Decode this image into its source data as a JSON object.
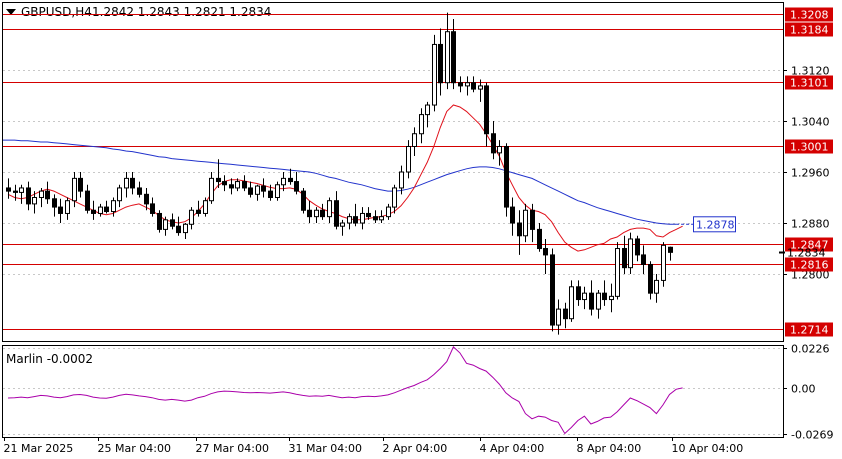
{
  "header": {
    "title": "GBPUSD,H4",
    "ohlc": "1.2842 1.2843 1.2821 1.2834"
  },
  "indicator": {
    "label": "Marlin -0.0002"
  },
  "colors": {
    "level_line": "#d40000",
    "level_label_bg": "#d40000",
    "ma_fast": "#e0101a",
    "ma_slow": "#2233cc",
    "oscillator": "#aa00aa",
    "candle_up": "#ffffff",
    "candle_down": "#000000",
    "grid": "#c8c8c8",
    "frame": "#000000"
  },
  "chart_data": [
    {
      "type": "candlestick",
      "symbol": "GBPUSD",
      "timeframe": "H4",
      "y_ticks": [
        "1.2800",
        "1.2880",
        "1.2960",
        "1.3040",
        "1.3120"
      ],
      "ylim": [
        1.2695,
        1.3225
      ],
      "x_ticks": [
        "21 Mar 2025",
        "25 Mar 04:00",
        "27 Mar 04:00",
        "31 Mar 04:00",
        "2 Apr 04:00",
        "4 Apr 04:00",
        "8 Apr 04:00",
        "10 Apr 04:00"
      ],
      "current_price": "1.2834",
      "ma_label": "1.2878",
      "levels": [
        {
          "label": "1.3208",
          "value": 1.3208
        },
        {
          "label": "1.3184",
          "value": 1.3184
        },
        {
          "label": "1.3101",
          "value": 1.3101
        },
        {
          "label": "1.3001",
          "value": 1.3001
        },
        {
          "label": "1.2847",
          "value": 1.2847
        },
        {
          "label": "1.2816",
          "value": 1.2816
        },
        {
          "label": "1.2714",
          "value": 1.2714
        }
      ],
      "candles": [
        [
          1.2935,
          1.295,
          1.2918,
          1.293
        ],
        [
          1.293,
          1.294,
          1.2915,
          1.2928
        ],
        [
          1.2928,
          1.294,
          1.291,
          1.2935
        ],
        [
          1.2935,
          1.2945,
          1.29,
          1.291
        ],
        [
          1.291,
          1.293,
          1.2895,
          1.292
        ],
        [
          1.292,
          1.2935,
          1.2905,
          1.293
        ],
        [
          1.293,
          1.2945,
          1.291,
          1.2918
        ],
        [
          1.2918,
          1.2925,
          1.289,
          1.2905
        ],
        [
          1.2905,
          1.2918,
          1.288,
          1.2895
        ],
        [
          1.2895,
          1.292,
          1.2885,
          1.2915
        ],
        [
          1.2915,
          1.296,
          1.2905,
          1.295
        ],
        [
          1.295,
          1.296,
          1.292,
          1.293
        ],
        [
          1.293,
          1.294,
          1.2895,
          1.29
        ],
        [
          1.29,
          1.2915,
          1.2885,
          1.2895
        ],
        [
          1.2895,
          1.291,
          1.289,
          1.2905
        ],
        [
          1.2905,
          1.2915,
          1.2895,
          1.2898
        ],
        [
          1.2898,
          1.292,
          1.289,
          1.2915
        ],
        [
          1.2915,
          1.294,
          1.2905,
          1.2935
        ],
        [
          1.2935,
          1.296,
          1.292,
          1.295
        ],
        [
          1.295,
          1.296,
          1.2925,
          1.2935
        ],
        [
          1.2935,
          1.2945,
          1.292,
          1.2925
        ],
        [
          1.2925,
          1.2935,
          1.29,
          1.291
        ],
        [
          1.291,
          1.292,
          1.289,
          1.2895
        ],
        [
          1.2895,
          1.29,
          1.2865,
          1.287
        ],
        [
          1.287,
          1.289,
          1.286,
          1.2885
        ],
        [
          1.2885,
          1.2895,
          1.287,
          1.2875
        ],
        [
          1.2875,
          1.289,
          1.286,
          1.2865
        ],
        [
          1.2865,
          1.288,
          1.2855,
          1.2878
        ],
        [
          1.2878,
          1.2905,
          1.287,
          1.29
        ],
        [
          1.29,
          1.2915,
          1.289,
          1.2895
        ],
        [
          1.2895,
          1.292,
          1.289,
          1.2915
        ],
        [
          1.2915,
          1.296,
          1.291,
          1.295
        ],
        [
          1.295,
          1.298,
          1.2935,
          1.2945
        ],
        [
          1.2945,
          1.2955,
          1.293,
          1.294
        ],
        [
          1.294,
          1.295,
          1.2925,
          1.2935
        ],
        [
          1.2935,
          1.295,
          1.293,
          1.2945
        ],
        [
          1.2945,
          1.2955,
          1.293,
          1.2935
        ],
        [
          1.2935,
          1.2945,
          1.292,
          1.2925
        ],
        [
          1.2925,
          1.294,
          1.2915,
          1.2938
        ],
        [
          1.2938,
          1.295,
          1.292,
          1.293
        ],
        [
          1.293,
          1.294,
          1.2915,
          1.292
        ],
        [
          1.292,
          1.2945,
          1.2915,
          1.294
        ],
        [
          1.294,
          1.296,
          1.293,
          1.295
        ],
        [
          1.295,
          1.2965,
          1.294,
          1.2945
        ],
        [
          1.2945,
          1.296,
          1.2925,
          1.293
        ],
        [
          1.293,
          1.2935,
          1.2895,
          1.29
        ],
        [
          1.29,
          1.2915,
          1.288,
          1.289
        ],
        [
          1.289,
          1.2905,
          1.288,
          1.29
        ],
        [
          1.29,
          1.291,
          1.2885,
          1.289
        ],
        [
          1.289,
          1.292,
          1.288,
          1.2915
        ],
        [
          1.2915,
          1.293,
          1.287,
          1.2875
        ],
        [
          1.2875,
          1.2885,
          1.286,
          1.288
        ],
        [
          1.288,
          1.2895,
          1.287,
          1.289
        ],
        [
          1.289,
          1.291,
          1.2875,
          1.288
        ],
        [
          1.288,
          1.2905,
          1.287,
          1.2895
        ],
        [
          1.2895,
          1.2905,
          1.2885,
          1.289
        ],
        [
          1.289,
          1.29,
          1.288,
          1.2885
        ],
        [
          1.2885,
          1.29,
          1.288,
          1.289
        ],
        [
          1.289,
          1.291,
          1.2885,
          1.2905
        ],
        [
          1.2905,
          1.294,
          1.2895,
          1.2935
        ],
        [
          1.2935,
          1.297,
          1.2925,
          1.296
        ],
        [
          1.296,
          1.301,
          1.295,
          1.3
        ],
        [
          1.3,
          1.303,
          1.2985,
          1.302
        ],
        [
          1.302,
          1.306,
          1.3005,
          1.305
        ],
        [
          1.305,
          1.307,
          1.303,
          1.3065
        ],
        [
          1.3065,
          1.3175,
          1.3055,
          1.316
        ],
        [
          1.316,
          1.3185,
          1.308,
          1.31
        ],
        [
          1.31,
          1.321,
          1.309,
          1.318
        ],
        [
          1.318,
          1.32,
          1.309,
          1.31
        ],
        [
          1.31,
          1.311,
          1.3085,
          1.3095
        ],
        [
          1.3095,
          1.311,
          1.308,
          1.31
        ],
        [
          1.31,
          1.311,
          1.3085,
          1.309
        ],
        [
          1.309,
          1.3105,
          1.307,
          1.3095
        ],
        [
          1.3095,
          1.31,
          1.3,
          1.302
        ],
        [
          1.302,
          1.304,
          1.298,
          1.299
        ],
        [
          1.299,
          1.301,
          1.297,
          1.3
        ],
        [
          1.3,
          1.3005,
          1.289,
          1.2905
        ],
        [
          1.2905,
          1.292,
          1.286,
          1.288
        ],
        [
          1.288,
          1.29,
          1.283,
          1.286
        ],
        [
          1.286,
          1.291,
          1.285,
          1.29
        ],
        [
          1.29,
          1.291,
          1.285,
          1.287
        ],
        [
          1.287,
          1.288,
          1.2835,
          1.284
        ],
        [
          1.284,
          1.2855,
          1.28,
          1.283
        ],
        [
          1.283,
          1.284,
          1.271,
          1.272
        ],
        [
          1.272,
          1.276,
          1.2705,
          1.2745
        ],
        [
          1.2745,
          1.2755,
          1.2715,
          1.273
        ],
        [
          1.273,
          1.279,
          1.2725,
          1.278
        ],
        [
          1.278,
          1.279,
          1.275,
          1.276
        ],
        [
          1.276,
          1.278,
          1.2745,
          1.277
        ],
        [
          1.277,
          1.279,
          1.2735,
          1.2745
        ],
        [
          1.2745,
          1.2775,
          1.273,
          1.277
        ],
        [
          1.277,
          1.279,
          1.275,
          1.276
        ],
        [
          1.276,
          1.2785,
          1.274,
          1.2765
        ],
        [
          1.2765,
          1.285,
          1.276,
          1.284
        ],
        [
          1.284,
          1.286,
          1.28,
          1.281
        ],
        [
          1.281,
          1.2865,
          1.28,
          1.2855
        ],
        [
          1.2855,
          1.286,
          1.282,
          1.283
        ],
        [
          1.283,
          1.2845,
          1.28,
          1.2815
        ],
        [
          1.2815,
          1.282,
          1.276,
          1.277
        ],
        [
          1.277,
          1.28,
          1.2755,
          1.279
        ],
        [
          1.279,
          1.285,
          1.278,
          1.2845
        ],
        [
          1.2842,
          1.2843,
          1.2821,
          1.2834
        ]
      ],
      "ma_fast": [
        1.2925,
        1.292,
        1.2918,
        1.292,
        1.2925,
        1.293,
        1.2933,
        1.293,
        1.2925,
        1.292,
        1.2915,
        1.291,
        1.2905,
        1.29,
        1.2895,
        1.2893,
        1.2895,
        1.29,
        1.2905,
        1.2908,
        1.291,
        1.2905,
        1.29,
        1.2892,
        1.2885,
        1.2882,
        1.288,
        1.2882,
        1.2888,
        1.2898,
        1.291,
        1.2925,
        1.2938,
        1.2945,
        1.2948,
        1.2948,
        1.2946,
        1.2944,
        1.2942,
        1.2939,
        1.2936,
        1.2934,
        1.2934,
        1.2935,
        1.2933,
        1.2925,
        1.2915,
        1.2908,
        1.2902,
        1.2898,
        1.2895,
        1.289,
        1.2887,
        1.2885,
        1.2885,
        1.2887,
        1.2889,
        1.289,
        1.2893,
        1.2898,
        1.2907,
        1.292,
        1.2935,
        1.2955,
        1.2975,
        1.3,
        1.303,
        1.3055,
        1.3065,
        1.3062,
        1.3055,
        1.3045,
        1.3035,
        1.302,
        1.3003,
        1.2985,
        1.296,
        1.294,
        1.292,
        1.2908,
        1.29,
        1.2898,
        1.2893,
        1.2882,
        1.2865,
        1.285,
        1.2842,
        1.2836,
        1.2838,
        1.2842,
        1.2846,
        1.2848,
        1.2855,
        1.2858,
        1.2865,
        1.287,
        1.2872,
        1.2872,
        1.287,
        1.286,
        1.2858,
        1.2865,
        1.287,
        1.2875
      ],
      "ma_slow": [
        1.301,
        1.301,
        1.3009,
        1.3009,
        1.3008,
        1.3007,
        1.3007,
        1.3006,
        1.3005,
        1.3004,
        1.3003,
        1.3002,
        1.3001,
        1.3,
        1.2999,
        1.2998,
        1.2996,
        1.2995,
        1.2993,
        1.2992,
        1.299,
        1.2988,
        1.2986,
        1.2984,
        1.2983,
        1.2981,
        1.298,
        1.2979,
        1.2978,
        1.2977,
        1.2976,
        1.2975,
        1.2974,
        1.2973,
        1.2972,
        1.2971,
        1.297,
        1.2969,
        1.2968,
        1.2967,
        1.2966,
        1.2965,
        1.2964,
        1.2963,
        1.2962,
        1.2961,
        1.296,
        1.2958,
        1.2955,
        1.2952,
        1.295,
        1.2947,
        1.2944,
        1.2942,
        1.294,
        1.2937,
        1.2934,
        1.2932,
        1.293,
        1.293,
        1.2931,
        1.2933,
        1.2936,
        1.294,
        1.2944,
        1.2948,
        1.2952,
        1.2956,
        1.2959,
        1.2962,
        1.2965,
        1.2967,
        1.2968,
        1.2968,
        1.2967,
        1.2965,
        1.2962,
        1.2959,
        1.2956,
        1.2953,
        1.295,
        1.2945,
        1.294,
        1.2935,
        1.293,
        1.2925,
        1.292,
        1.2915,
        1.2912,
        1.2908,
        1.2904,
        1.2901,
        1.2898,
        1.2895,
        1.2892,
        1.2889,
        1.2886,
        1.2884,
        1.2882,
        1.288,
        1.2879,
        1.2878,
        1.2878
      ],
      "oscillator": {
        "label": "Marlin",
        "value": "-0.0002",
        "y_ticks": [
          "0.0226",
          "0.00",
          "-0.0269"
        ],
        "ylim": [
          -0.0285,
          0.024
        ],
        "values": [
          -0.006,
          -0.0058,
          -0.0055,
          -0.0058,
          -0.0052,
          -0.0045,
          -0.0048,
          -0.0055,
          -0.0058,
          -0.0052,
          -0.0042,
          -0.004,
          -0.0045,
          -0.0055,
          -0.006,
          -0.0062,
          -0.0055,
          -0.0045,
          -0.0038,
          -0.0042,
          -0.0048,
          -0.0052,
          -0.0058,
          -0.0068,
          -0.0072,
          -0.0068,
          -0.0072,
          -0.0078,
          -0.0072,
          -0.0058,
          -0.005,
          -0.0035,
          -0.0025,
          -0.002,
          -0.0022,
          -0.0025,
          -0.0028,
          -0.003,
          -0.0028,
          -0.003,
          -0.0032,
          -0.0028,
          -0.0025,
          -0.003,
          -0.0038,
          -0.0045,
          -0.005,
          -0.0048,
          -0.005,
          -0.0045,
          -0.0052,
          -0.0058,
          -0.0055,
          -0.0058,
          -0.0052,
          -0.005,
          -0.0052,
          -0.0048,
          -0.0042,
          -0.003,
          -0.0015,
          0.0,
          0.0012,
          0.003,
          0.0045,
          0.0075,
          0.011,
          0.015,
          0.0235,
          0.02,
          0.014,
          0.013,
          0.011,
          0.0095,
          0.006,
          0.002,
          -0.003,
          -0.006,
          -0.008,
          -0.015,
          -0.018,
          -0.0165,
          -0.017,
          -0.019,
          -0.02,
          -0.0265,
          -0.023,
          -0.019,
          -0.0165,
          -0.021,
          -0.0195,
          -0.0175,
          -0.017,
          -0.014,
          -0.01,
          -0.006,
          -0.0075,
          -0.0095,
          -0.0115,
          -0.015,
          -0.01,
          -0.004,
          -0.001,
          -0.0002
        ]
      }
    }
  ]
}
